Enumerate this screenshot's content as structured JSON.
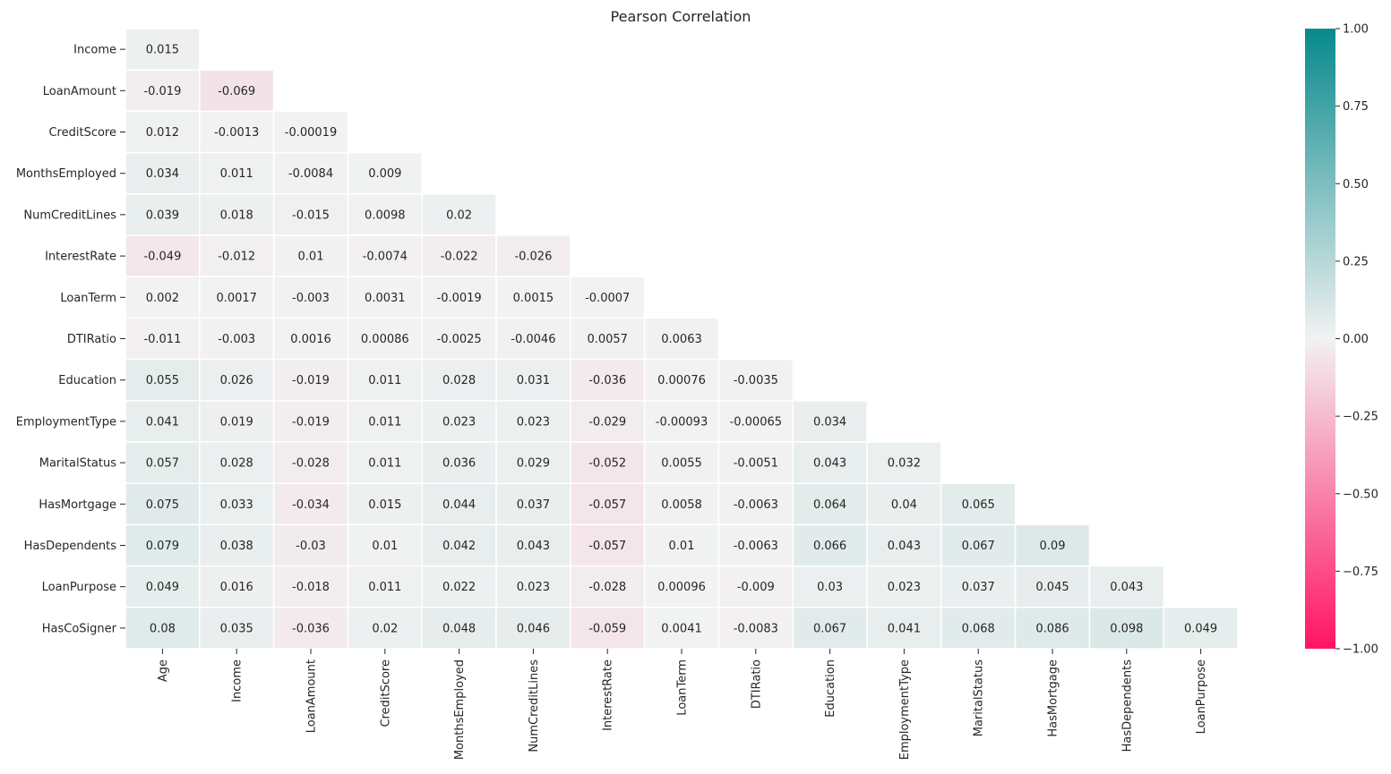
{
  "chart_data": {
    "type": "heatmap",
    "title": "Pearson Correlation",
    "xlabel": "",
    "ylabel": "",
    "x_categories": [
      "Age",
      "Income",
      "LoanAmount",
      "CreditScore",
      "MonthsEmployed",
      "NumCreditLines",
      "InterestRate",
      "LoanTerm",
      "DTIRatio",
      "Education",
      "EmploymentType",
      "MaritalStatus",
      "HasMortgage",
      "HasDependents",
      "LoanPurpose"
    ],
    "y_categories": [
      "Income",
      "LoanAmount",
      "CreditScore",
      "MonthsEmployed",
      "NumCreditLines",
      "InterestRate",
      "LoanTerm",
      "DTIRatio",
      "Education",
      "EmploymentType",
      "MaritalStatus",
      "HasMortgage",
      "HasDependents",
      "LoanPurpose",
      "HasCoSigner"
    ],
    "values": [
      [
        0.015
      ],
      [
        -0.019,
        -0.069
      ],
      [
        0.012,
        -0.0013,
        -0.00019
      ],
      [
        0.034,
        0.011,
        -0.0084,
        0.009
      ],
      [
        0.039,
        0.018,
        -0.015,
        0.0098,
        0.02
      ],
      [
        -0.049,
        -0.012,
        0.01,
        -0.0074,
        -0.022,
        -0.026
      ],
      [
        0.002,
        0.0017,
        -0.003,
        0.0031,
        -0.0019,
        0.0015,
        -0.0007
      ],
      [
        -0.011,
        -0.003,
        0.0016,
        0.00086,
        -0.0025,
        -0.0046,
        0.0057,
        0.0063
      ],
      [
        0.055,
        0.026,
        -0.019,
        0.011,
        0.028,
        0.031,
        -0.036,
        0.00076,
        -0.0035
      ],
      [
        0.041,
        0.019,
        -0.019,
        0.011,
        0.023,
        0.023,
        -0.029,
        -0.00093,
        -0.00065,
        0.034
      ],
      [
        0.057,
        0.028,
        -0.028,
        0.011,
        0.036,
        0.029,
        -0.052,
        0.0055,
        -0.0051,
        0.043,
        0.032
      ],
      [
        0.075,
        0.033,
        -0.034,
        0.015,
        0.044,
        0.037,
        -0.057,
        0.0058,
        -0.0063,
        0.064,
        0.04,
        0.065
      ],
      [
        0.079,
        0.038,
        -0.03,
        0.01,
        0.042,
        0.043,
        -0.057,
        0.01,
        -0.0063,
        0.066,
        0.043,
        0.067,
        0.09
      ],
      [
        0.049,
        0.016,
        -0.018,
        0.011,
        0.022,
        0.023,
        -0.028,
        0.00096,
        -0.009,
        0.03,
        0.023,
        0.037,
        0.045,
        0.043
      ],
      [
        0.08,
        0.035,
        -0.036,
        0.02,
        0.048,
        0.046,
        -0.059,
        0.0041,
        -0.0083,
        0.067,
        0.041,
        0.068,
        0.086,
        0.098,
        0.049
      ]
    ],
    "colorbar": {
      "vmin": -1.0,
      "vmax": 1.0,
      "ticks": [
        "1.00",
        "0.75",
        "0.50",
        "0.25",
        "0.00",
        "−0.25",
        "−0.50",
        "−0.75",
        "−1.00"
      ],
      "colors": {
        "negative": "#ff1463",
        "center": "#f2f2f2",
        "positive": "#07898c"
      }
    },
    "grid": false,
    "legend": "right"
  }
}
